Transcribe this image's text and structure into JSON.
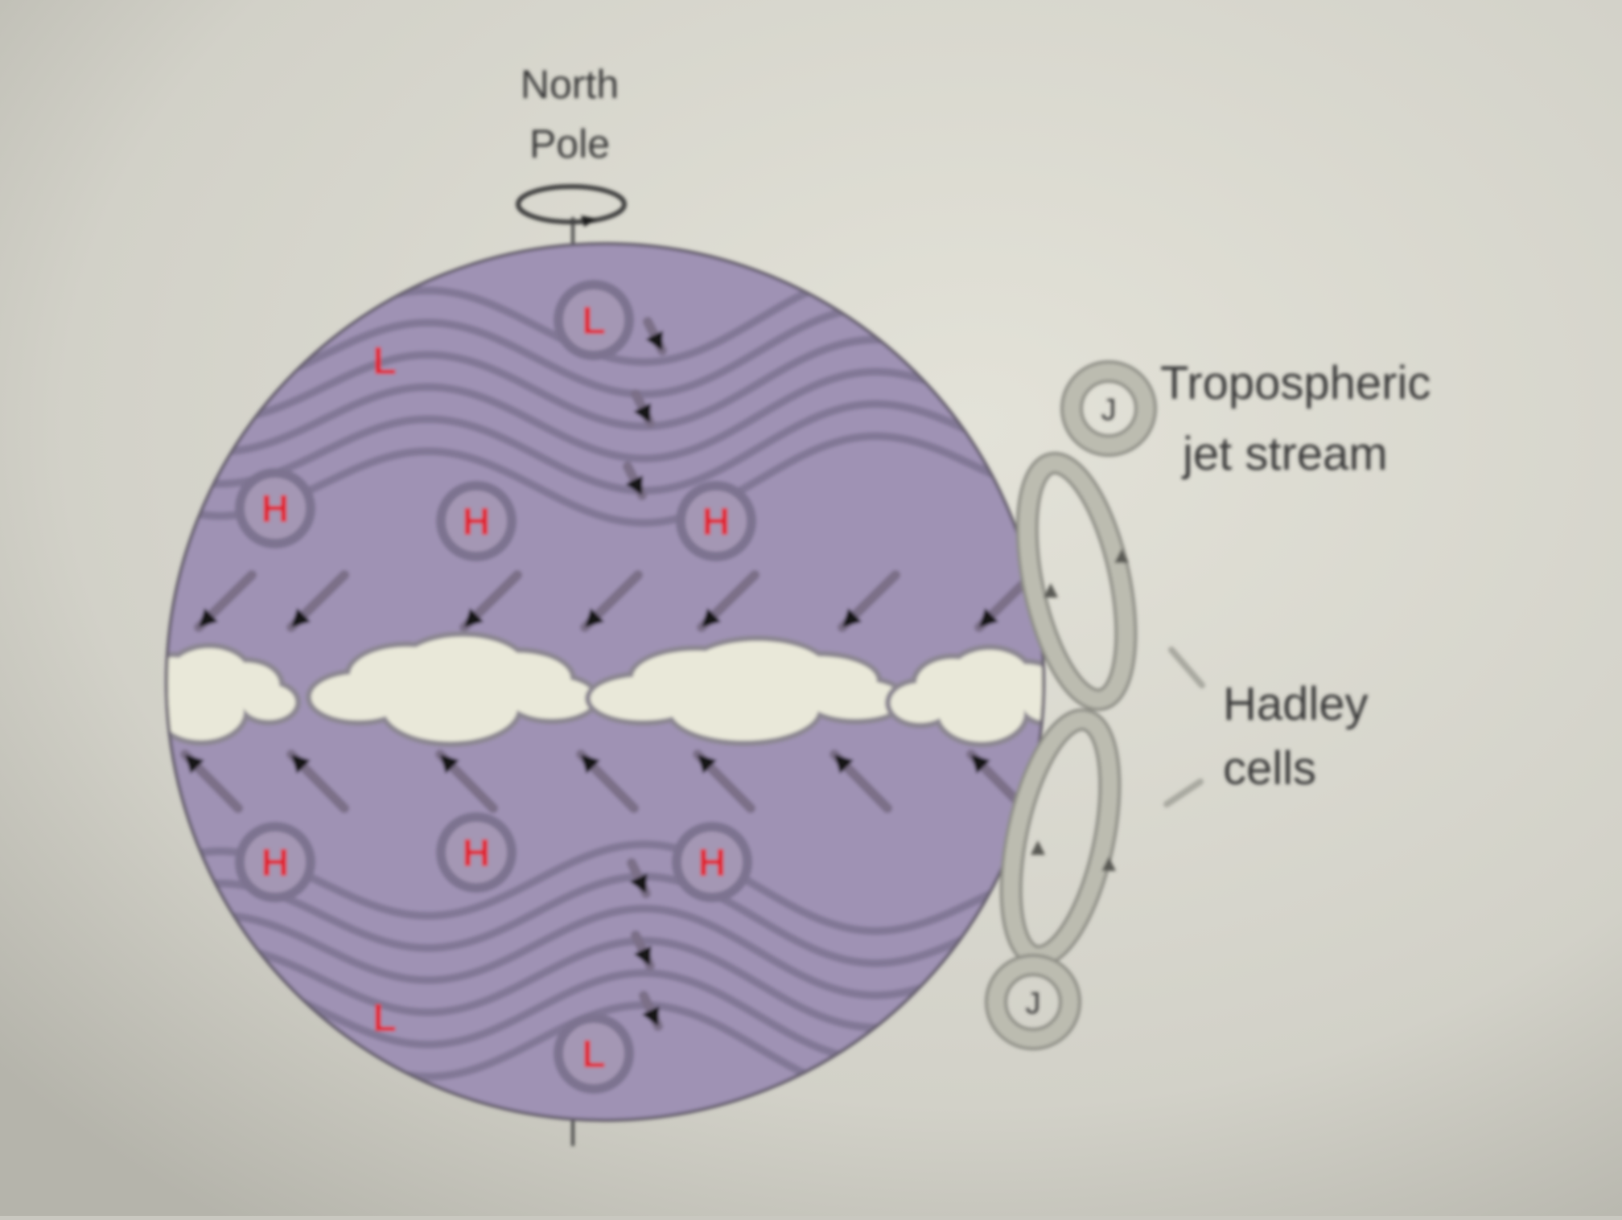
{
  "labels": {
    "north_pole_line1": "North",
    "north_pole_line2": "Pole",
    "jet_stream_line1": "Tropospheric",
    "jet_stream_line2": "jet stream",
    "hadley_line1": "Hadley",
    "hadley_line2": "cells"
  },
  "pressure_markers": {
    "high": "H",
    "low": "L"
  },
  "jet_marker": "J",
  "colors": {
    "globe_fill": "#9f92b4",
    "globe_stroke": "#6a6472",
    "isobar": "#7d7390",
    "pressure_letter": "#e0242e",
    "pressure_ring": "#a497b4",
    "cloud_fill": "#e9e8d9",
    "cloud_stroke": "#8c8792",
    "loop_stroke": "#bcbcb0",
    "loop_edge": "#8e8e86",
    "arrow": "#141414",
    "text": "#3b3b3b",
    "paper": "#d9d8d0"
  }
}
